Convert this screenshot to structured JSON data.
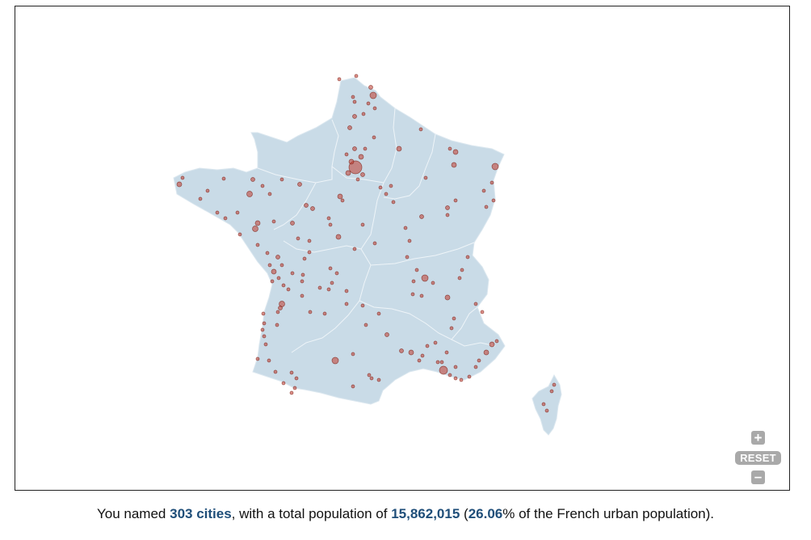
{
  "map": {
    "region_fill": "#c9dbe7",
    "region_stroke": "#eef4f8",
    "city_fill": "#c0392b",
    "city_stroke": "#7a1f16"
  },
  "controls": {
    "zoom_in_label": "+",
    "reset_label": "RESET",
    "zoom_out_label": "–"
  },
  "summary": {
    "prefix": "You named ",
    "city_count": "303 cities",
    "middle": ", with a total population of ",
    "population": "15,862,015",
    "open_paren": " (",
    "percent": "26.06",
    "suffix": "% of the French urban population)."
  }
}
